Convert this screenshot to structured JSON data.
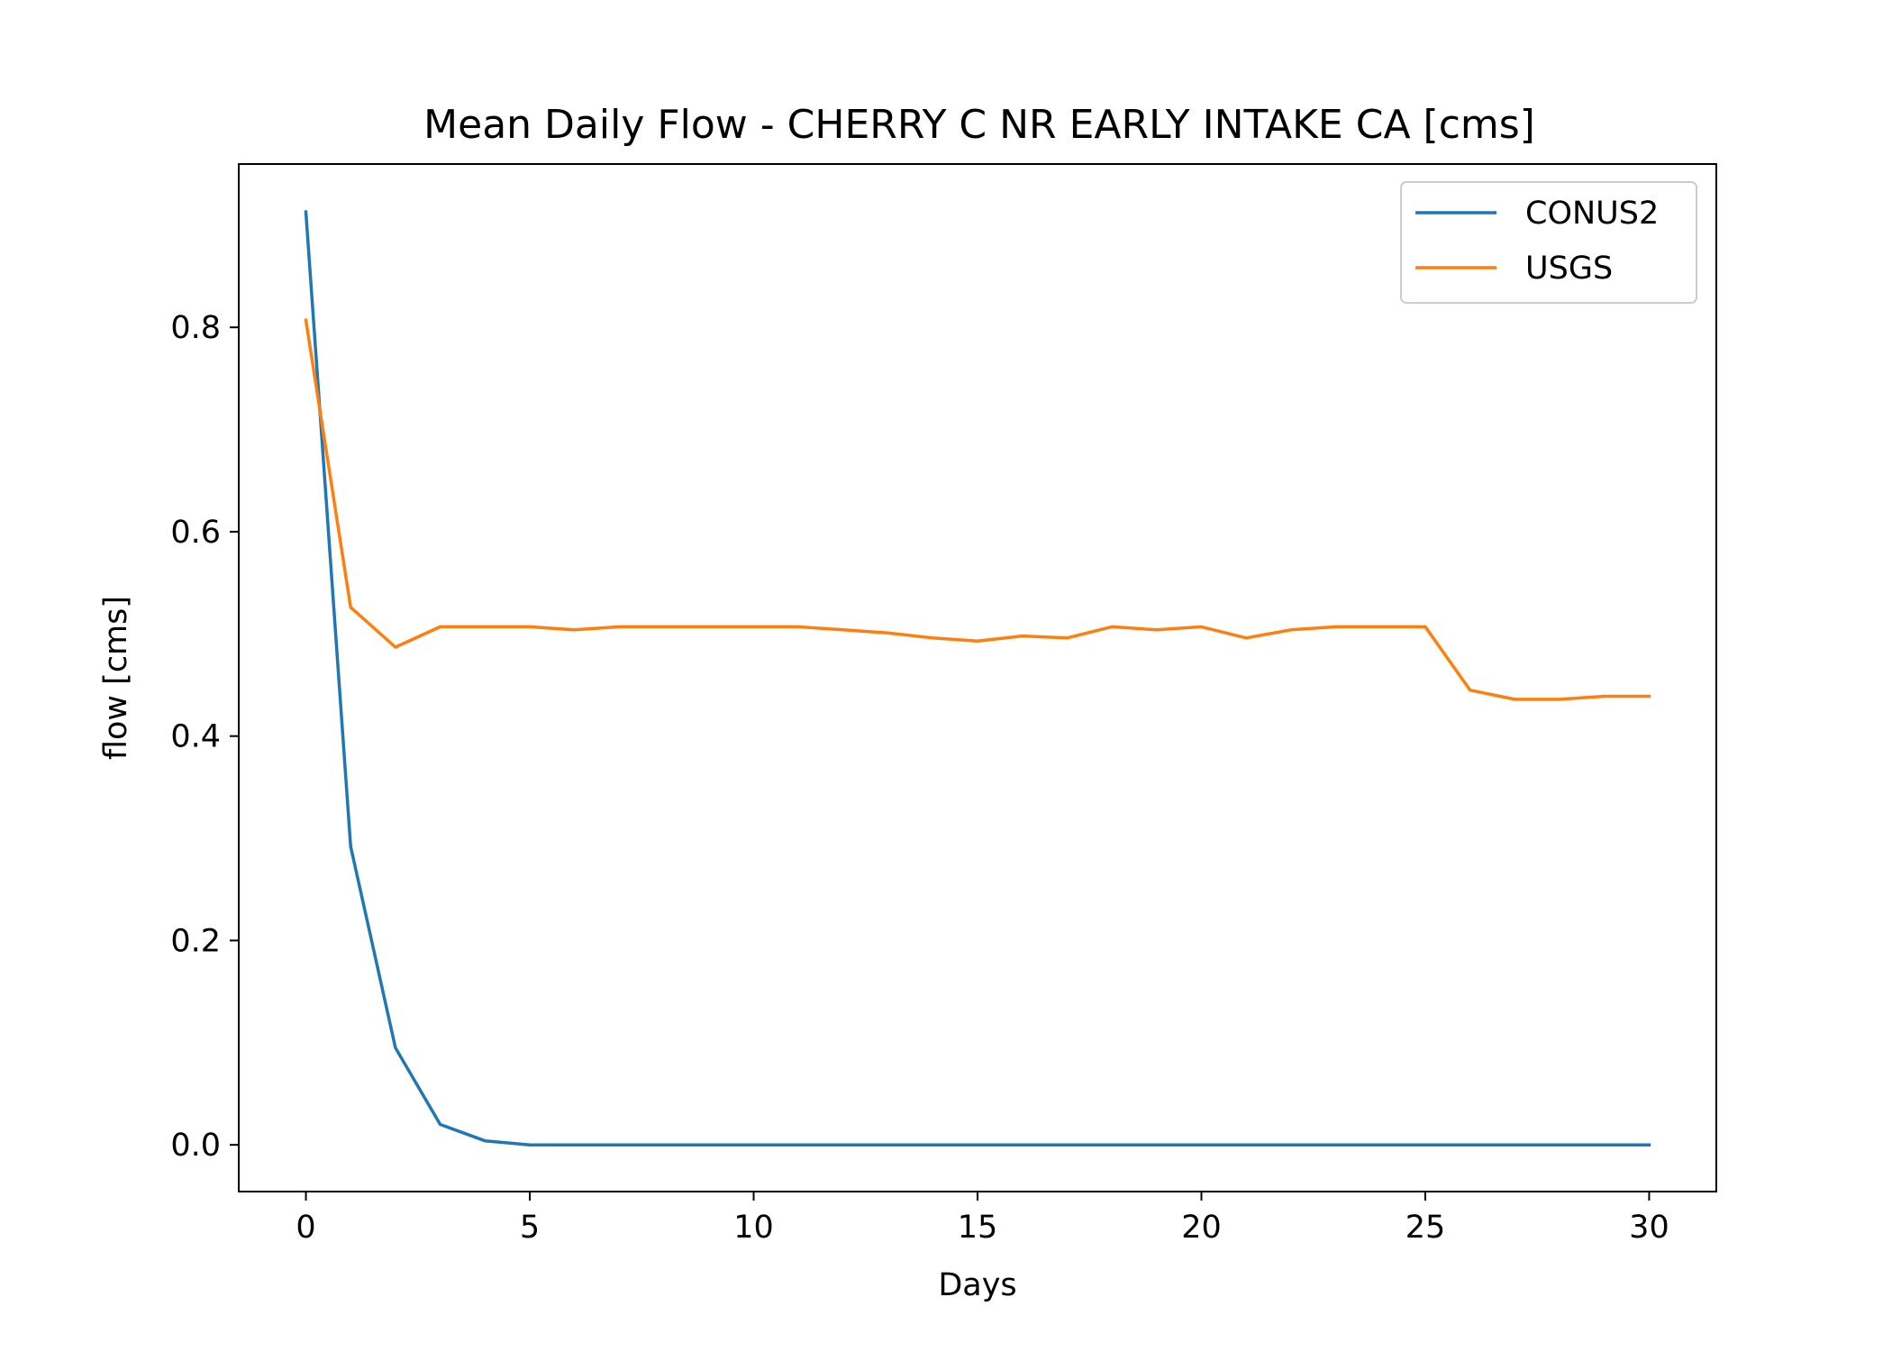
{
  "chart_data": {
    "type": "line",
    "title": "Mean Daily Flow - CHERRY C NR EARLY INTAKE CA [cms]",
    "xlabel": "Days",
    "ylabel": "flow [cms]",
    "xlim": [
      -1.5,
      31.5
    ],
    "ylim": [
      -0.0457,
      0.9598
    ],
    "xticks": [
      0,
      5,
      10,
      15,
      20,
      25,
      30
    ],
    "xtick_labels": [
      "0",
      "5",
      "10",
      "15",
      "20",
      "25",
      "30"
    ],
    "yticks": [
      0.0,
      0.2,
      0.4,
      0.6,
      0.8
    ],
    "ytick_labels": [
      "0.0",
      "0.2",
      "0.4",
      "0.6",
      "0.8"
    ],
    "grid": false,
    "legend_position": "top-right",
    "x": [
      0,
      1,
      2,
      3,
      4,
      5,
      6,
      7,
      8,
      9,
      10,
      11,
      12,
      13,
      14,
      15,
      16,
      17,
      18,
      19,
      20,
      21,
      22,
      23,
      24,
      25,
      26,
      27,
      28,
      29,
      30
    ],
    "series": [
      {
        "name": "CONUS2",
        "color": "#1f77b4",
        "values": [
          0.913,
          0.292,
          0.095,
          0.02,
          0.004,
          0.0,
          0.0,
          0.0,
          0.0,
          0.0,
          0.0,
          0.0,
          0.0,
          0.0,
          0.0,
          0.0,
          0.0,
          0.0,
          0.0,
          0.0,
          0.0,
          0.0,
          0.0,
          0.0,
          0.0,
          0.0,
          0.0,
          0.0,
          0.0,
          0.0,
          0.0
        ]
      },
      {
        "name": "USGS",
        "color": "#ff7f0e",
        "values": [
          0.807,
          0.526,
          0.487,
          0.507,
          0.507,
          0.507,
          0.504,
          0.507,
          0.507,
          0.507,
          0.507,
          0.507,
          0.504,
          0.501,
          0.496,
          0.493,
          0.498,
          0.496,
          0.507,
          0.504,
          0.507,
          0.496,
          0.504,
          0.507,
          0.507,
          0.507,
          0.445,
          0.436,
          0.436,
          0.439,
          0.439
        ]
      }
    ]
  }
}
